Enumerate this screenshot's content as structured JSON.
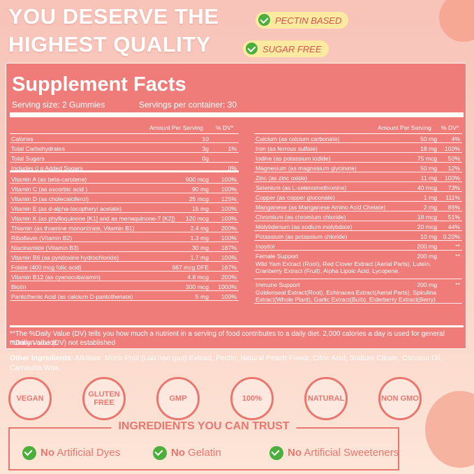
{
  "header": {
    "title_lines": [
      "YOU DESERVE THE",
      "HIGHEST QUALITY"
    ],
    "badges": [
      "PECTIN BASED",
      "SUGAR FREE"
    ]
  },
  "facts": {
    "title": "Supplement Facts",
    "serving_size": "Serving size: 2 Gummies",
    "servings": "Servings per container: 30",
    "left": {
      "header": [
        "Amount Per Serving",
        "% DV*"
      ],
      "rows": [
        {
          "name": "Calories",
          "amount": "10"
        },
        {
          "name": "Total Carbohydrates",
          "amount": "3g",
          "dv": "1%"
        },
        {
          "name": "Total Sugars",
          "amount": "0g"
        },
        {
          "name": "Includes 0 g Added Sugars",
          "dv": "0%"
        },
        {
          "name": "Vitamin A (as beta-carotene)",
          "amount": "900 mcg",
          "dv": "100%"
        },
        {
          "name": "Vitamin C (as ascorbic acid )",
          "amount": "90 mg",
          "dv": "100%"
        },
        {
          "name": "Vitamin D (as cholecalciferol)",
          "amount": "25 mcg",
          "dv": "125%"
        },
        {
          "name": "Vitamin E (as d-alpha-tocopheryl acetate)",
          "amount": "15 mg",
          "dv": "100%"
        },
        {
          "name": "Vitamin K (as phylloquinone [K1] and as menaquinone-7 [K2])",
          "amount": "120 mcg",
          "dv": "100%"
        },
        {
          "name": "Thiamin (as thiamine mononitrate, Vitamin B1)",
          "amount": "2.4 mg",
          "dv": "200%"
        },
        {
          "name": "Riboflavin (Vitamin B2)",
          "amount": "1.3 mg",
          "dv": "100%"
        },
        {
          "name": "Niacinamide (Vitamin B3)",
          "amount": "30 mg",
          "dv": "187%"
        },
        {
          "name": "Vitamin B6 (as pyridoxine hydrochloride)",
          "amount": "1.7 mg",
          "dv": "100%"
        },
        {
          "name": "Folate (400 mcg folic acid)",
          "amount": "667 mcg DFE",
          "dv": "167%"
        },
        {
          "name": "Vitamin B12 (as cyanocobalamin)",
          "amount": "4.8 mcg",
          "dv": "200%"
        },
        {
          "name": "Biotin",
          "amount": "300 mcg",
          "dv": "1000%"
        },
        {
          "name": "Pantothenic Acid (as calcium D-pantothenate)",
          "amount": "5 mg",
          "dv": "100%"
        }
      ]
    },
    "right": {
      "header": [
        "Amount Per Serving",
        "% DV*"
      ],
      "rows": [
        {
          "name": "Calcium (as calcium carbonate)",
          "amount": "50 mg",
          "dv": "4%"
        },
        {
          "name": "Iron (as ferrous sulfate)",
          "amount": "18 mg",
          "dv": "100%"
        },
        {
          "name": "Iodine (as potassium iodide)",
          "amount": "75 mcg",
          "dv": "50%"
        },
        {
          "name": "Magnesium (as magnesium glycinate)",
          "amount": "50 mg",
          "dv": "12%"
        },
        {
          "name": "Zinc (as zinc oxide)",
          "amount": "11 mg",
          "dv": "100%"
        },
        {
          "name": "Selenium (as L-selenomethionine)",
          "amount": "40 mcg",
          "dv": "73%"
        },
        {
          "name": "Copper (as copper gluconate)",
          "amount": "1 mg",
          "dv": "111%"
        },
        {
          "name": "Manganese (as Manganese Amino Acid Chelate)",
          "amount": "2 mg",
          "dv": "86%"
        },
        {
          "name": "Chromium (as chromium chloride)",
          "amount": "18 mcg",
          "dv": "51%"
        },
        {
          "name": "Molybdenum (as sodium molybdate)",
          "amount": "20 mcg",
          "dv": "44%"
        },
        {
          "name": "Potassium (as potassium chloride)",
          "amount": "10 mg",
          "dv": "0.20%"
        },
        {
          "name": "Inositol",
          "amount": "200 mg",
          "dv": "**"
        },
        {
          "name": "Female Support",
          "amount": "200 mg",
          "dv": "**",
          "detail": "Wild Yam Extract (Root), Red Clover Extract (Aerial Parts), Lutein, Cranberry Extract (Fruit), Alpha Lipoic Acid, Lycopene."
        },
        {
          "name": "Immune Support",
          "amount": "200 mg",
          "dv": "**",
          "detail": "Goldenseal Extract(Root), Echinacea Extract(Aerial Parts), Spirulina Extract(Whole Plant), Garlic Extract(Bulb), Elderberry Extract(Berry)"
        }
      ]
    },
    "footnotes": [
      "**The %Daily Value (DV) tells you how much a nutrient in a serving of food contributes to a daily diet. 2,000 calories a day is used for general nutrition advice.",
      "**Daily Value (DV) not established"
    ]
  },
  "other_ingredients": {
    "label": "Other Ingredients:",
    "text": "Allulose, Monk Fruit (Luo han guo) Extract, Pectin, Natural Peach Flavor, Citric Acid, Sodium Citrate, Coconut Oil, Carnauba Wax."
  },
  "icons": [
    "VEGAN",
    "GLUTEN FREE",
    "GMP",
    "100%",
    "NATURAL",
    "NON GMO"
  ],
  "trust": {
    "title": "INGREDIENTS YOU CAN TRUST",
    "items": [
      {
        "bold": "No",
        "text": "Artificial Dyes"
      },
      {
        "bold": "No",
        "text": "Gelatin"
      },
      {
        "bold": "No",
        "text": "Artificial Sweeteners"
      }
    ]
  }
}
